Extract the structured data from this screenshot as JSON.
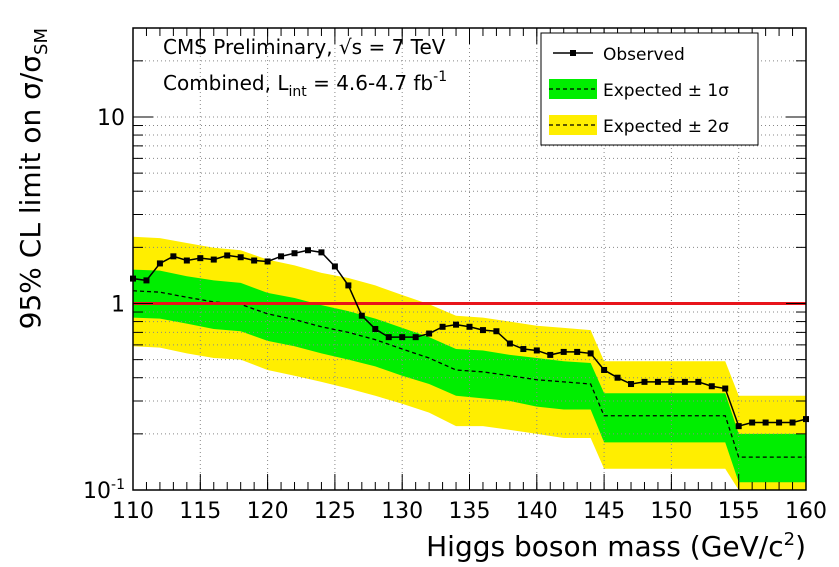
{
  "chart_data": {
    "type": "limit",
    "annotations": [
      {
        "text": "CMS Preliminary, √s = 7 TeV"
      },
      {
        "text": "Combined, L",
        "sub": "int",
        "rest": " = 4.6-4.7 fb",
        "sup": "-1"
      }
    ],
    "x_label": {
      "text": "Higgs boson mass (GeV/c",
      "sup": "2",
      "rest": ")"
    },
    "y_label": {
      "text": "95% CL limit on σ/σ",
      "sub": "SM"
    },
    "xlim": [
      110,
      160
    ],
    "xticks": [
      110,
      115,
      120,
      125,
      130,
      135,
      140,
      145,
      150,
      155,
      160
    ],
    "ylim": [
      0.1,
      30
    ],
    "yticks": [
      {
        "value": 0.1,
        "label": "10",
        "sup": "-1"
      },
      1,
      10
    ],
    "log_y": true,
    "grid": true,
    "legend_position": "upper right",
    "reference_line": {
      "value": 1,
      "color": "#e8141b"
    },
    "observed": {
      "name": "Observed",
      "color": "#000000",
      "x": [
        110,
        111,
        112,
        113,
        114,
        115,
        116,
        117,
        118,
        119,
        120,
        121,
        122,
        123,
        124,
        125,
        126,
        127,
        128,
        129,
        130,
        131,
        132,
        133,
        134,
        135,
        136,
        137,
        138,
        139,
        140,
        141,
        142,
        143,
        144,
        145,
        146,
        147,
        148,
        149,
        150,
        151,
        152,
        153,
        154,
        155,
        156,
        157,
        158,
        159,
        160
      ],
      "values": [
        1.36,
        1.33,
        1.64,
        1.79,
        1.7,
        1.75,
        1.72,
        1.81,
        1.77,
        1.7,
        1.68,
        1.79,
        1.86,
        1.93,
        1.88,
        1.58,
        1.25,
        0.86,
        0.73,
        0.66,
        0.66,
        0.66,
        0.69,
        0.75,
        0.77,
        0.75,
        0.72,
        0.71,
        0.61,
        0.57,
        0.56,
        0.53,
        0.55,
        0.55,
        0.54,
        0.44,
        0.4,
        0.37,
        0.38,
        0.38,
        0.38,
        0.38,
        0.38,
        0.36,
        0.35,
        0.22,
        0.23,
        0.23,
        0.23,
        0.23,
        0.24
      ]
    },
    "expected": {
      "color": "#000000",
      "x": [
        110,
        112,
        114,
        116,
        118,
        120,
        122,
        124,
        126,
        128,
        130,
        132,
        134,
        136,
        138,
        140,
        142,
        144,
        145,
        150,
        154,
        155,
        160
      ],
      "values": [
        1.17,
        1.15,
        1.08,
        1.02,
        0.99,
        0.88,
        0.82,
        0.75,
        0.7,
        0.64,
        0.57,
        0.51,
        0.44,
        0.43,
        0.41,
        0.39,
        0.38,
        0.37,
        0.25,
        0.25,
        0.25,
        0.15,
        0.15
      ]
    },
    "bands": [
      {
        "name": "Expected ± 2σ",
        "color": "#ffee00",
        "high": [
          2.28,
          2.24,
          2.11,
          1.99,
          1.93,
          1.72,
          1.6,
          1.46,
          1.37,
          1.25,
          1.11,
          0.99,
          0.86,
          0.84,
          0.8,
          0.76,
          0.74,
          0.72,
          0.49,
          0.49,
          0.49,
          0.32,
          0.32
        ],
        "low": [
          0.59,
          0.58,
          0.54,
          0.51,
          0.5,
          0.44,
          0.41,
          0.38,
          0.35,
          0.32,
          0.29,
          0.26,
          0.22,
          0.22,
          0.21,
          0.2,
          0.19,
          0.19,
          0.13,
          0.13,
          0.13,
          0.1,
          0.1
        ]
      },
      {
        "name": "Expected ± 1σ",
        "color": "#00ee00",
        "high": [
          1.52,
          1.5,
          1.4,
          1.33,
          1.29,
          1.14,
          1.07,
          0.98,
          0.91,
          0.83,
          0.74,
          0.66,
          0.57,
          0.56,
          0.53,
          0.51,
          0.49,
          0.48,
          0.33,
          0.33,
          0.33,
          0.2,
          0.2
        ],
        "low": [
          0.84,
          0.83,
          0.78,
          0.73,
          0.71,
          0.63,
          0.59,
          0.54,
          0.5,
          0.46,
          0.41,
          0.37,
          0.32,
          0.31,
          0.3,
          0.28,
          0.27,
          0.27,
          0.18,
          0.18,
          0.18,
          0.11,
          0.11
        ]
      }
    ]
  }
}
